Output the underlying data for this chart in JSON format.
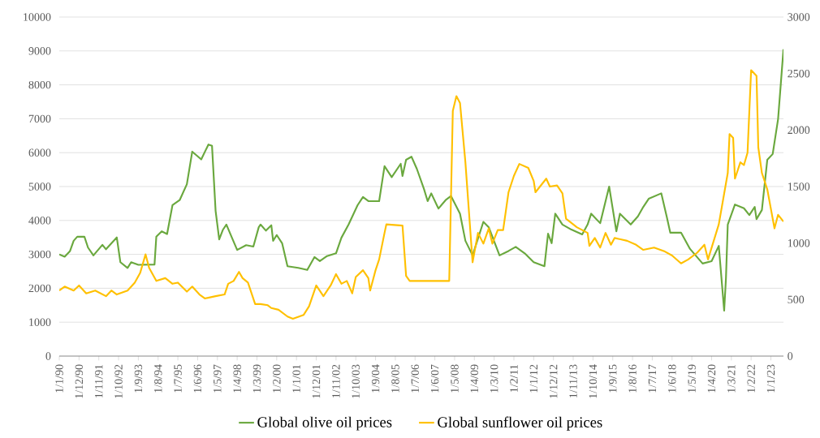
{
  "chart_data": {
    "type": "line",
    "xlim": [
      "1990-01",
      "2023-08"
    ],
    "xticks": [
      {
        "value": "1990-01",
        "label": "1/1/90"
      },
      {
        "value": "1990-12",
        "label": "1/12/90"
      },
      {
        "value": "1991-11",
        "label": "1/11/91"
      },
      {
        "value": "1992-10",
        "label": "1/10/92"
      },
      {
        "value": "1993-09",
        "label": "1/9/93"
      },
      {
        "value": "1994-08",
        "label": "1/8/94"
      },
      {
        "value": "1995-07",
        "label": "1/7/95"
      },
      {
        "value": "1996-06",
        "label": "1/6/96"
      },
      {
        "value": "1997-05",
        "label": "1/5/97"
      },
      {
        "value": "1998-04",
        "label": "1/4/98"
      },
      {
        "value": "1999-03",
        "label": "1/3/99"
      },
      {
        "value": "2000-02",
        "label": "1/2/00"
      },
      {
        "value": "2001-01",
        "label": "1/1/01"
      },
      {
        "value": "2001-12",
        "label": "1/12/01"
      },
      {
        "value": "2002-11",
        "label": "1/11/02"
      },
      {
        "value": "2003-10",
        "label": "1/10/03"
      },
      {
        "value": "2004-09",
        "label": "1/9/04"
      },
      {
        "value": "2005-08",
        "label": "1/8/05"
      },
      {
        "value": "2006-07",
        "label": "1/7/06"
      },
      {
        "value": "2007-06",
        "label": "1/6/07"
      },
      {
        "value": "2008-05",
        "label": "1/5/08"
      },
      {
        "value": "2009-04",
        "label": "1/4/09"
      },
      {
        "value": "2010-03",
        "label": "1/3/10"
      },
      {
        "value": "2011-02",
        "label": "1/2/11"
      },
      {
        "value": "2012-01",
        "label": "1/1/12"
      },
      {
        "value": "2012-12",
        "label": "1/12/12"
      },
      {
        "value": "2013-11",
        "label": "1/11/13"
      },
      {
        "value": "2014-10",
        "label": "1/10/14"
      },
      {
        "value": "2015-09",
        "label": "1/9/15"
      },
      {
        "value": "2016-08",
        "label": "1/8/16"
      },
      {
        "value": "2017-07",
        "label": "1/7/17"
      },
      {
        "value": "2018-06",
        "label": "1/6/18"
      },
      {
        "value": "2019-05",
        "label": "1/5/19"
      },
      {
        "value": "2020-04",
        "label": "1/4/20"
      },
      {
        "value": "2021-03",
        "label": "1/3/21"
      },
      {
        "value": "2022-02",
        "label": "1/2/22"
      },
      {
        "value": "2023-01",
        "label": "1/1/23"
      }
    ],
    "ylim": [
      0,
      10000
    ],
    "yticks": [
      0,
      1000,
      2000,
      3000,
      4000,
      5000,
      6000,
      7000,
      8000,
      9000,
      10000
    ],
    "y2lim": [
      0,
      3000
    ],
    "y2ticks": [
      0,
      500,
      1000,
      1500,
      2000,
      2500,
      3000
    ],
    "grid": "y",
    "legend": "bottom",
    "series": [
      {
        "name": "Global olive oil prices",
        "color": "#6aa83e",
        "x": [
          "1990-01",
          "1990-04",
          "1990-07",
          "1990-09",
          "1990-11",
          "1991-03",
          "1991-05",
          "1991-08",
          "1992-01",
          "1992-03",
          "1992-09",
          "1992-11",
          "1993-03",
          "1993-05",
          "1993-09",
          "1994-06",
          "1994-07",
          "1994-10",
          "1995-01",
          "1995-04",
          "1995-08",
          "1995-12",
          "1996-03",
          "1996-08",
          "1996-12",
          "1997-02",
          "1997-04",
          "1997-06",
          "1997-08",
          "1997-10",
          "1998-01",
          "1998-04",
          "1998-09",
          "1999-01",
          "1999-04",
          "1999-05",
          "1999-08",
          "1999-11",
          "1999-12",
          "2000-02",
          "2000-05",
          "2000-08",
          "2001-02",
          "2001-07",
          "2001-11",
          "2002-02",
          "2002-06",
          "2002-11",
          "2003-02",
          "2003-06",
          "2003-11",
          "2004-02",
          "2004-05",
          "2004-11",
          "2005-02",
          "2005-06",
          "2005-11",
          "2005-12",
          "2006-02",
          "2006-05",
          "2006-08",
          "2006-12",
          "2007-02",
          "2007-04",
          "2007-08",
          "2007-12",
          "2008-03",
          "2008-08",
          "2008-11",
          "2009-03",
          "2009-09",
          "2009-12",
          "2010-06",
          "2010-11",
          "2011-03",
          "2011-08",
          "2012-01",
          "2012-07",
          "2012-09",
          "2012-11",
          "2013-01",
          "2013-05",
          "2013-10",
          "2014-04",
          "2014-07",
          "2014-09",
          "2015-02",
          "2015-07",
          "2015-11",
          "2016-01",
          "2016-07",
          "2016-11",
          "2017-02",
          "2017-05",
          "2017-12",
          "2018-03",
          "2018-05",
          "2018-11",
          "2019-04",
          "2019-11",
          "2020-04",
          "2020-08",
          "2020-11",
          "2020-12",
          "2021-01",
          "2021-05",
          "2021-10",
          "2022-01",
          "2022-04",
          "2022-05",
          "2022-08",
          "2022-11",
          "2023-02",
          "2023-05",
          "2023-08"
        ],
        "values": [
          3000,
          2930,
          3100,
          3400,
          3520,
          3520,
          3200,
          2970,
          3280,
          3150,
          3500,
          2770,
          2600,
          2770,
          2690,
          2700,
          3520,
          3680,
          3600,
          4450,
          4600,
          5070,
          6030,
          5800,
          6240,
          6200,
          4280,
          3440,
          3720,
          3880,
          3500,
          3130,
          3270,
          3230,
          3800,
          3880,
          3700,
          3860,
          3400,
          3570,
          3330,
          2650,
          2600,
          2540,
          2920,
          2800,
          2950,
          3030,
          3490,
          3880,
          4450,
          4690,
          4570,
          4570,
          5600,
          5280,
          5670,
          5310,
          5790,
          5880,
          5520,
          4920,
          4570,
          4800,
          4350,
          4600,
          4720,
          4200,
          3400,
          2970,
          3960,
          3800,
          2970,
          3100,
          3220,
          3030,
          2770,
          2650,
          3610,
          3330,
          4200,
          3880,
          3730,
          3590,
          3880,
          4200,
          3920,
          5000,
          3680,
          4200,
          3880,
          4120,
          4400,
          4640,
          4800,
          4120,
          3640,
          3640,
          3160,
          2730,
          2800,
          3250,
          1340,
          2300,
          3880,
          4470,
          4360,
          4160,
          4400,
          4040,
          4310,
          5790,
          5960,
          6990,
          9050
        ]
      },
      {
        "name": "Global sunflower oil prices",
        "color": "#ffc000",
        "axis": "y2",
        "x": [
          "1990-01",
          "1990-04",
          "1990-09",
          "1990-12",
          "1991-04",
          "1991-09",
          "1992-03",
          "1992-06",
          "1992-09",
          "1993-03",
          "1993-07",
          "1993-10",
          "1994-01",
          "1994-03",
          "1994-07",
          "1994-12",
          "1995-04",
          "1995-07",
          "1995-12",
          "1996-03",
          "1996-07",
          "1996-10",
          "1997-04",
          "1997-09",
          "1997-11",
          "1998-02",
          "1998-05",
          "1998-07",
          "1998-10",
          "1999-02",
          "1999-05",
          "1999-09",
          "1999-11",
          "2000-03",
          "2000-08",
          "2000-11",
          "2001-05",
          "2001-08",
          "2001-12",
          "2002-04",
          "2002-08",
          "2002-11",
          "2003-02",
          "2003-05",
          "2003-08",
          "2003-10",
          "2004-02",
          "2004-05",
          "2004-06",
          "2004-09",
          "2004-11",
          "2005-02",
          "2005-03",
          "2005-12",
          "2006-02",
          "2006-04",
          "2008-02",
          "2008-04",
          "2008-06",
          "2008-08",
          "2008-11",
          "2009-03",
          "2009-06",
          "2009-09",
          "2009-12",
          "2010-02",
          "2010-05",
          "2010-08",
          "2010-11",
          "2011-02",
          "2011-05",
          "2011-10",
          "2012-01",
          "2012-02",
          "2012-08",
          "2012-10",
          "2013-02",
          "2013-05",
          "2013-07",
          "2013-09",
          "2014-01",
          "2014-07",
          "2014-08",
          "2014-11",
          "2015-02",
          "2015-05",
          "2015-08",
          "2015-10",
          "2016-05",
          "2016-10",
          "2017-02",
          "2017-08",
          "2018-02",
          "2018-06",
          "2018-11",
          "2019-03",
          "2019-08",
          "2019-12",
          "2020-02",
          "2020-08",
          "2021-01",
          "2021-02",
          "2021-04",
          "2021-05",
          "2021-08",
          "2021-10",
          "2021-12",
          "2022-02",
          "2022-05",
          "2022-06",
          "2022-08",
          "2022-11",
          "2023-03",
          "2023-05",
          "2023-08"
        ],
        "values": [
          580,
          615,
          580,
          625,
          555,
          580,
          530,
          580,
          545,
          580,
          650,
          735,
          900,
          780,
          665,
          690,
          640,
          650,
          570,
          615,
          545,
          510,
          530,
          545,
          640,
          665,
          745,
          690,
          650,
          460,
          460,
          450,
          425,
          410,
          350,
          330,
          365,
          440,
          625,
          530,
          625,
          725,
          640,
          665,
          555,
          700,
          760,
          690,
          580,
          760,
          855,
          1090,
          1165,
          1155,
          710,
          665,
          665,
          2170,
          2300,
          2240,
          1715,
          830,
          1090,
          995,
          1130,
          995,
          1115,
          1115,
          1450,
          1595,
          1700,
          1665,
          1550,
          1450,
          1570,
          1500,
          1510,
          1440,
          1215,
          1190,
          1140,
          1090,
          975,
          1045,
          960,
          1090,
          985,
          1045,
          1020,
          985,
          940,
          960,
          925,
          890,
          820,
          855,
          915,
          985,
          855,
          1165,
          1620,
          1965,
          1930,
          1570,
          1715,
          1690,
          1800,
          2530,
          2480,
          1845,
          1620,
          1475,
          1130,
          1250,
          1190
        ]
      }
    ]
  }
}
